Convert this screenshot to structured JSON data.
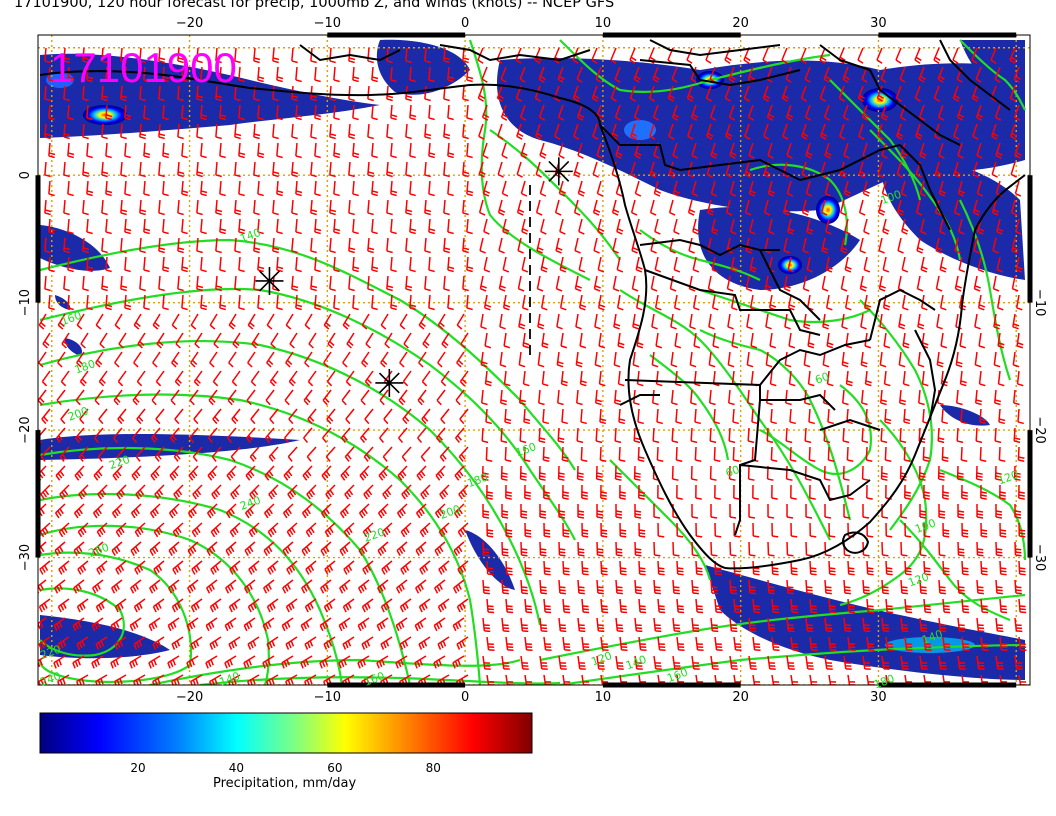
{
  "title": "17101900, 120 hour forecast for precip, 1000mb Z, and winds (knots) -- NCEP GFS",
  "stamp": "17101900",
  "map": {
    "lon_range": [
      -31,
      41
    ],
    "lat_range": [
      -40,
      11
    ],
    "lon_ticks_top": [
      {
        "v": -20,
        "t": "−20"
      },
      {
        "v": -10,
        "t": "−10"
      },
      {
        "v": 0,
        "t": "0"
      },
      {
        "v": 10,
        "t": "10"
      },
      {
        "v": 20,
        "t": "20"
      },
      {
        "v": 30,
        "t": "30"
      }
    ],
    "lon_ticks_bottom": [
      {
        "v": -20,
        "t": "−20"
      },
      {
        "v": -10,
        "t": "−10"
      },
      {
        "v": 0,
        "t": "0"
      },
      {
        "v": 10,
        "t": "10"
      },
      {
        "v": 20,
        "t": "20"
      },
      {
        "v": 30,
        "t": "30"
      }
    ],
    "lat_ticks_left": [
      {
        "v": 0,
        "t": "0"
      },
      {
        "v": -10,
        "t": "−10"
      },
      {
        "v": -20,
        "t": "−20"
      },
      {
        "v": -30,
        "t": "−30"
      }
    ],
    "lat_ticks_right": [
      {
        "v": -10,
        "t": "−10"
      },
      {
        "v": -20,
        "t": "−20"
      },
      {
        "v": -30,
        "t": "−30"
      }
    ],
    "contour_labels": [
      {
        "t": "140",
        "lon": -15.5,
        "lat": -5.0
      },
      {
        "t": "160",
        "lon": -28.5,
        "lat": -11.5
      },
      {
        "t": "180",
        "lon": -27.5,
        "lat": -15.3
      },
      {
        "t": "200",
        "lon": -28.0,
        "lat": -19.0
      },
      {
        "t": "220",
        "lon": -25.0,
        "lat": -22.8
      },
      {
        "t": "240",
        "lon": -15.5,
        "lat": -26.0
      },
      {
        "t": "260",
        "lon": -26.5,
        "lat": -29.7
      },
      {
        "t": "220",
        "lon": -30.0,
        "lat": -37.7
      },
      {
        "t": "240",
        "lon": -30.0,
        "lat": -39.8
      },
      {
        "t": "220",
        "lon": -6.5,
        "lat": -28.5
      },
      {
        "t": "200",
        "lon": -1.0,
        "lat": -26.7
      },
      {
        "t": "180",
        "lon": 1.0,
        "lat": -24.2
      },
      {
        "t": "160",
        "lon": 4.5,
        "lat": -21.8
      },
      {
        "t": "60",
        "lon": 19.5,
        "lat": -23.5
      },
      {
        "t": "60",
        "lon": 26.0,
        "lat": -16.2
      },
      {
        "t": "100",
        "lon": 33.5,
        "lat": -27.8
      },
      {
        "t": "120",
        "lon": 33.0,
        "lat": -32.0
      },
      {
        "t": "140",
        "lon": 34.0,
        "lat": -36.5
      },
      {
        "t": "120",
        "lon": 39.5,
        "lat": -24.0
      },
      {
        "t": "100",
        "lon": 31.0,
        "lat": -2.0
      },
      {
        "t": "120",
        "lon": 10.0,
        "lat": -38.2
      },
      {
        "t": "140",
        "lon": 12.5,
        "lat": -38.5
      },
      {
        "t": "160",
        "lon": 15.5,
        "lat": -39.5
      },
      {
        "t": "180",
        "lon": 30.5,
        "lat": -40.0
      },
      {
        "t": "140",
        "lon": -17.0,
        "lat": -39.8
      },
      {
        "t": "160",
        "lon": -6.5,
        "lat": -39.8
      }
    ],
    "markers": [
      {
        "lon": 6.8,
        "lat": 0.3
      },
      {
        "lon": -14.2,
        "lat": -8.3
      },
      {
        "lon": -5.5,
        "lat": -16.3
      }
    ],
    "colors": {
      "background": "#ffffff",
      "grid": "#e0a000",
      "contour": "#22dd22",
      "barb": "#ff0000",
      "coast": "#000000",
      "stamp": "#ff00ff"
    }
  },
  "colorbar": {
    "label": "Precipitation, mm/day",
    "ticks": [
      {
        "v": 20,
        "t": "20"
      },
      {
        "v": 40,
        "t": "40"
      },
      {
        "v": 60,
        "t": "60"
      },
      {
        "v": 80,
        "t": "80"
      }
    ],
    "range": [
      0,
      100
    ],
    "colors": [
      "#000080",
      "#0000ff",
      "#0080ff",
      "#00ffff",
      "#80ff80",
      "#ffff00",
      "#ff8000",
      "#ff0000",
      "#800000"
    ]
  }
}
